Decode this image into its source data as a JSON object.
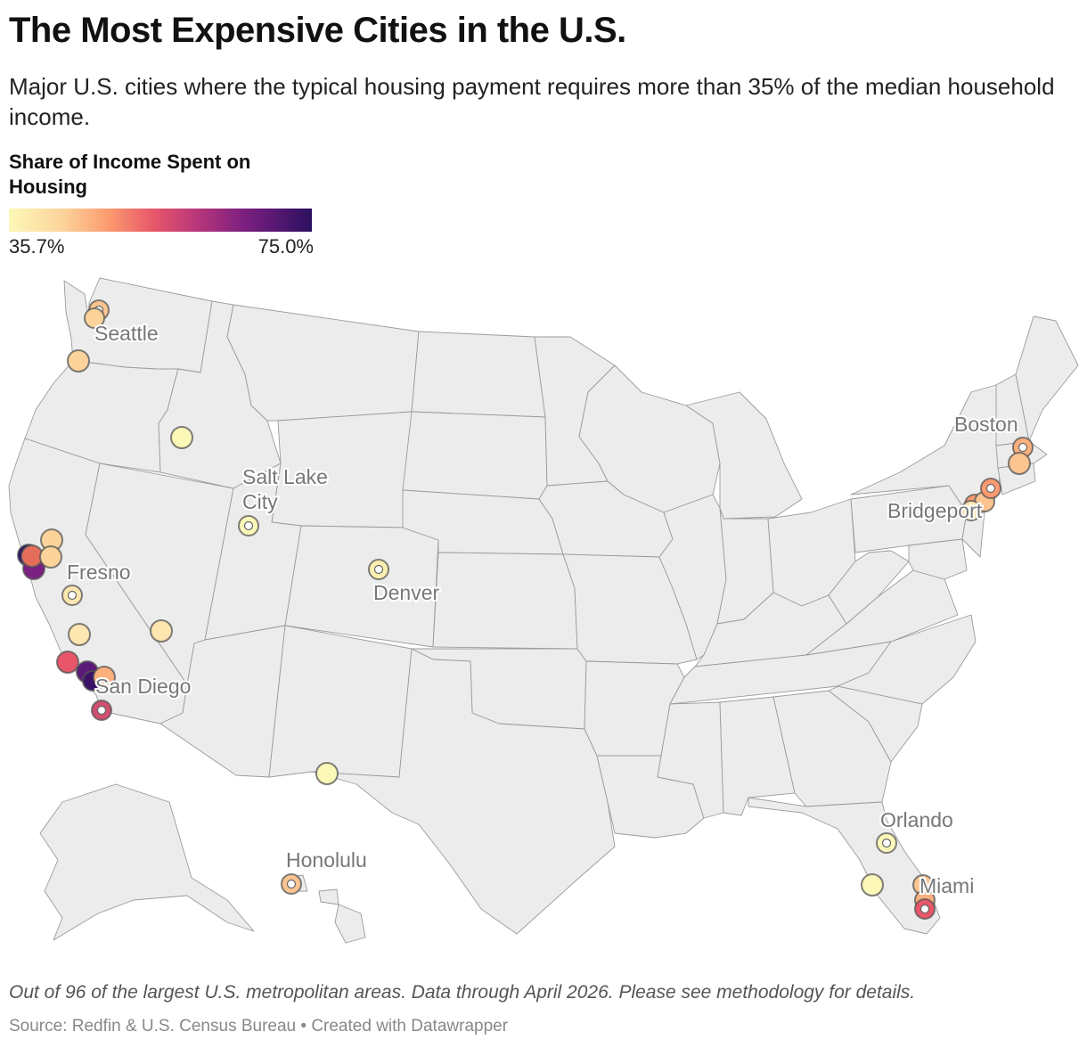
{
  "title": "The Most Expensive Cities in the U.S.",
  "subtitle": "Major U.S. cities where the typical housing payment requires more than 35% of the median household income.",
  "legend": {
    "title": "Share of Income Spent on Housing",
    "min_label": "35.7%",
    "max_label": "75.0%",
    "colors": [
      "#fcf8b8",
      "#fcd39a",
      "#fb9a6f",
      "#e8566a",
      "#b8367a",
      "#7b1f80",
      "#2c1060"
    ]
  },
  "labels": {
    "seattle": "Seattle",
    "salt_lake_line1": "Salt Lake",
    "salt_lake_line2": "City",
    "fresno": "Fresno",
    "denver": "Denver",
    "san_diego": "San Diego",
    "boston": "Boston",
    "bridgeport": "Bridgeport",
    "orlando": "Orlando",
    "honolulu": "Honolulu",
    "miami": "Miami"
  },
  "footer": {
    "note": "Out of 96 of the largest U.S. metropolitan areas. Data through April 2026. Please see methodology for details.",
    "source": "Source: Redfin & U.S. Census Bureau • Created with Datawrapper"
  }
}
